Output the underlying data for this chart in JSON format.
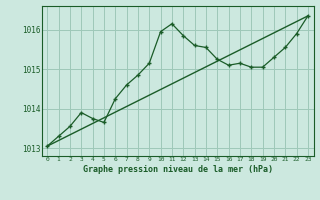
{
  "title": "Graphe pression niveau de la mer (hPa)",
  "background_color": "#cce8df",
  "plot_bg_color": "#cce8df",
  "grid_color": "#9ec8b8",
  "line_color": "#1a5c28",
  "xlim": [
    -0.5,
    23.5
  ],
  "ylim": [
    1012.8,
    1016.6
  ],
  "yticks": [
    1013,
    1014,
    1015,
    1016
  ],
  "xticks": [
    0,
    1,
    2,
    3,
    4,
    5,
    6,
    7,
    8,
    9,
    10,
    11,
    12,
    13,
    14,
    15,
    16,
    17,
    18,
    19,
    20,
    21,
    22,
    23
  ],
  "trend_x": [
    0,
    23
  ],
  "trend_y": [
    1013.05,
    1016.35
  ],
  "series_x": [
    0,
    1,
    2,
    3,
    4,
    5,
    6,
    7,
    8,
    9,
    10,
    11,
    12,
    13,
    14,
    15,
    16,
    17,
    18,
    19,
    20,
    21,
    22,
    23
  ],
  "series_y": [
    1013.05,
    1013.3,
    1013.55,
    1013.9,
    1013.75,
    1013.65,
    1014.25,
    1014.6,
    1014.85,
    1015.15,
    1015.95,
    1016.15,
    1015.85,
    1015.6,
    1015.55,
    1015.25,
    1015.1,
    1015.15,
    1015.05,
    1015.05,
    1015.3,
    1015.55,
    1015.9,
    1016.35
  ]
}
